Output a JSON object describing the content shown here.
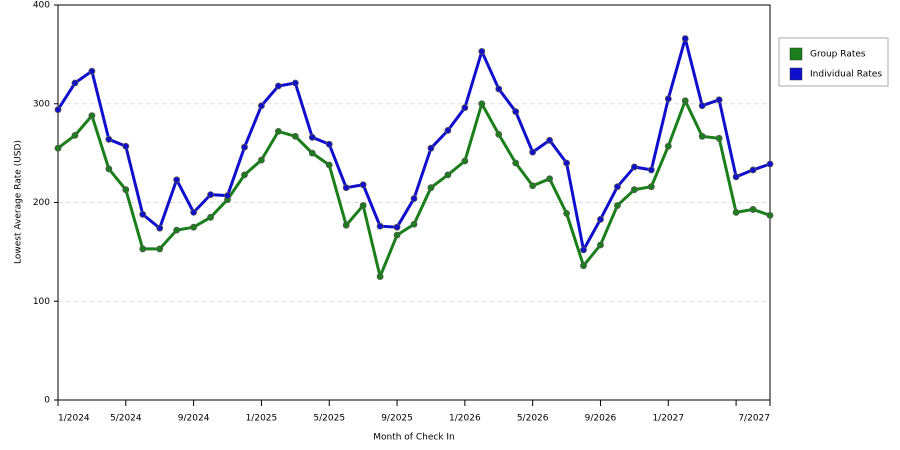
{
  "chart_data": {
    "type": "line",
    "x_label": "Month of Check In",
    "y_label": "Lowest Average Rate (USD)",
    "categories": [
      "1/2024",
      null,
      null,
      null,
      "5/2024",
      null,
      null,
      null,
      "9/2024",
      null,
      null,
      null,
      "1/2025",
      null,
      null,
      null,
      "5/2025",
      null,
      null,
      null,
      "9/2025",
      null,
      null,
      null,
      "1/2026",
      null,
      null,
      null,
      "5/2026",
      null,
      null,
      null,
      "9/2026",
      null,
      null,
      null,
      "1/2027",
      null,
      null,
      null,
      null,
      null,
      "7/2027"
    ],
    "ylim": [
      0,
      400
    ],
    "yticks": [
      0,
      100,
      200,
      300,
      400
    ],
    "grid": true,
    "legend": "right",
    "series": [
      {
        "name": "Group Rates",
        "color": "#1a7f1a",
        "values": [
          255,
          268,
          288,
          234,
          213,
          153,
          153,
          172,
          175,
          185,
          203,
          228,
          243,
          272,
          267,
          250,
          238,
          177,
          197,
          125,
          167,
          178,
          215,
          228,
          242,
          300,
          269,
          240,
          217,
          224,
          189,
          136,
          157,
          197,
          213,
          216,
          257,
          303,
          267,
          265,
          190,
          193,
          187
        ]
      },
      {
        "name": "Individual Rates",
        "color": "#1010cc",
        "values": [
          294,
          321,
          333,
          264,
          257,
          188,
          174,
          223,
          190,
          208,
          207,
          256,
          298,
          318,
          321,
          266,
          259,
          215,
          218,
          176,
          175,
          204,
          255,
          273,
          296,
          353,
          315,
          292,
          251,
          263,
          240,
          152,
          183,
          216,
          236,
          233,
          305,
          366,
          298,
          304,
          226,
          233,
          239
        ]
      }
    ]
  }
}
